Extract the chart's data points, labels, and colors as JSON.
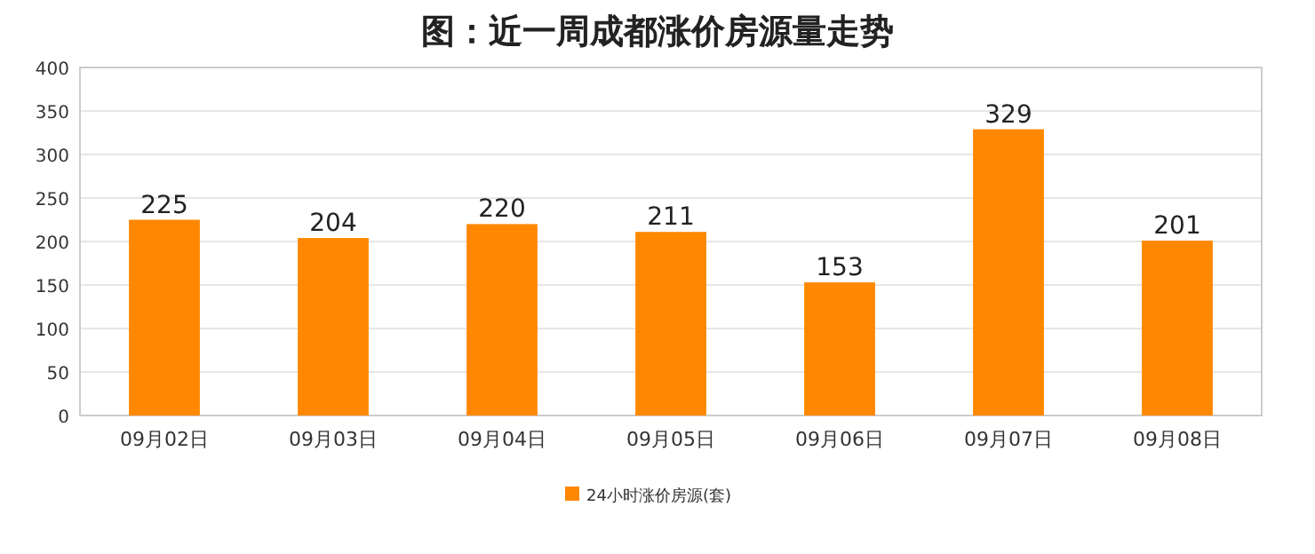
{
  "chart_data": {
    "type": "bar",
    "title": "图：近一周成都涨价房源量走势",
    "categories": [
      "09月02日",
      "09月03日",
      "09月04日",
      "09月05日",
      "09月06日",
      "09月07日",
      "09月08日"
    ],
    "series": [
      {
        "name": "24小时涨价房源(套)",
        "color": "#ff8800",
        "values": [
          225,
          204,
          220,
          211,
          153,
          329,
          201
        ]
      }
    ],
    "ylim": [
      0,
      400
    ],
    "yticks": [
      0,
      50,
      100,
      150,
      200,
      250,
      300,
      350,
      400
    ],
    "grid": "y",
    "legend": "bottom",
    "data_labels": true
  }
}
